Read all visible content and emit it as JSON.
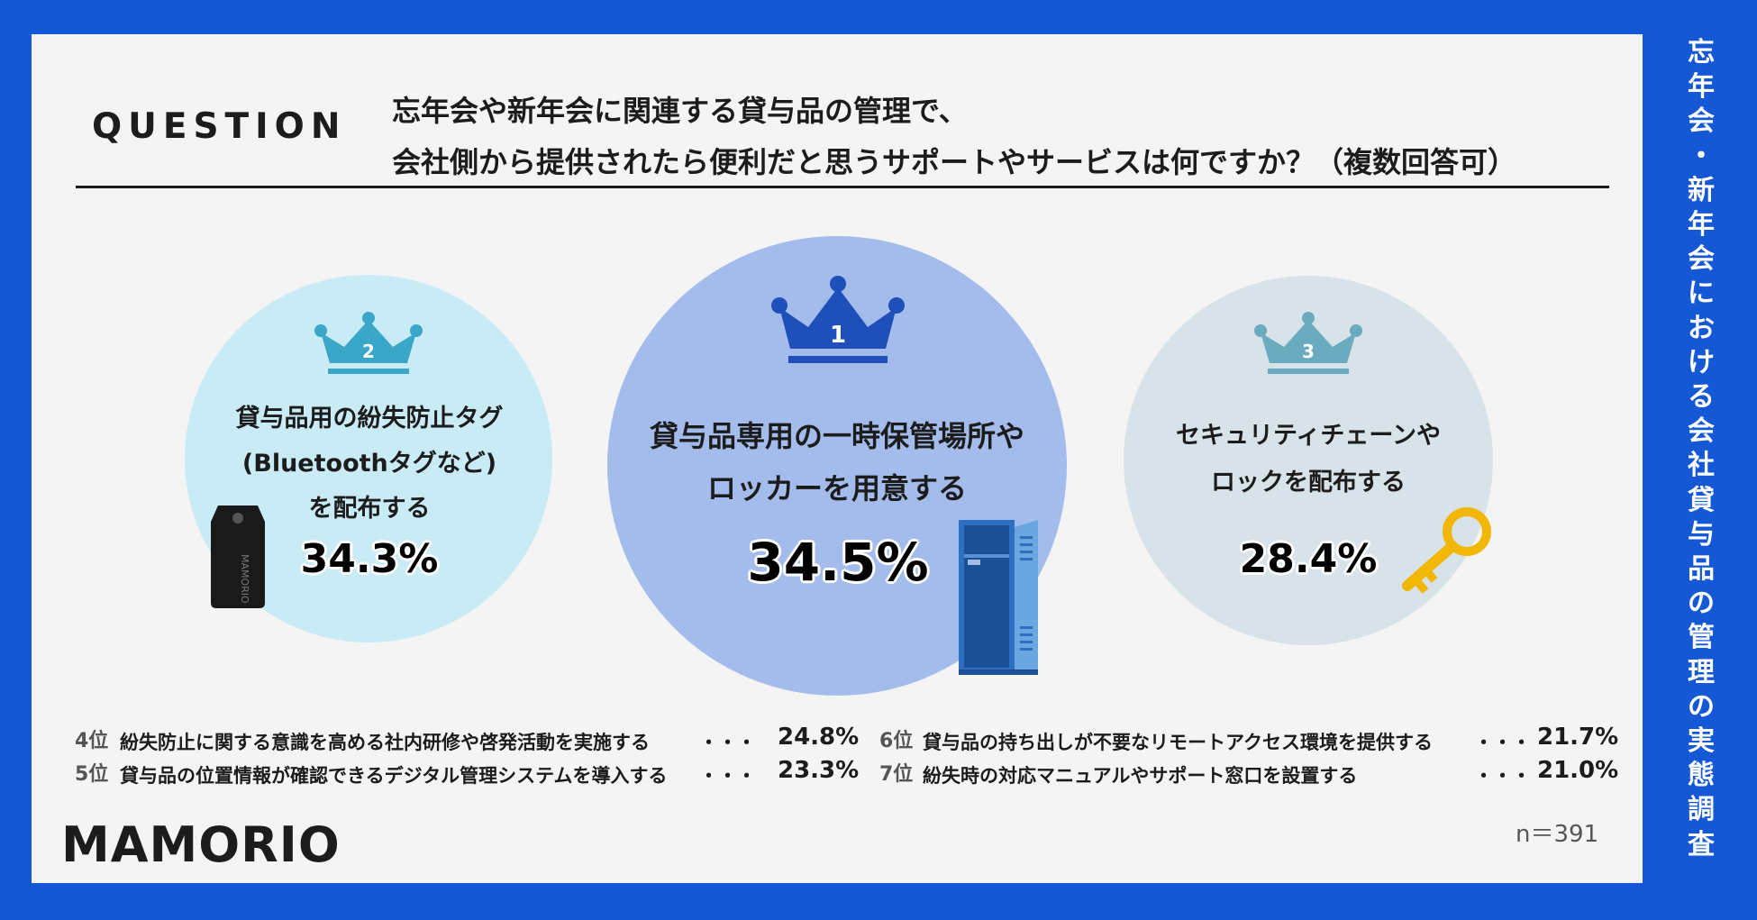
{
  "side_title": "忘年会・新年会における会社貸与品の管理の実態調査",
  "question": {
    "label": "QUESTION",
    "line1": "忘年会や新年会に関連する貸与品の管理で、",
    "line2": "会社側から提供されたら便利だと思うサポートやサービスは何ですか？（複数回答可）"
  },
  "chart_data": {
    "type": "table",
    "items": [
      {
        "rank": "1",
        "label_lines": [
          "貸与品専用の一時保管場所や",
          "ロッカーを用意する"
        ],
        "value": 34.5,
        "display": "34.5%"
      },
      {
        "rank": "2",
        "label_lines": [
          "貸与品用の紛失防止タグ",
          "(Bluetoothタグなど)",
          "を配布する"
        ],
        "value": 34.3,
        "display": "34.3%"
      },
      {
        "rank": "3",
        "label_lines": [
          "セキュリティチェーンや",
          "ロックを配布する"
        ],
        "value": 28.4,
        "display": "28.4%"
      },
      {
        "rank": "4位",
        "label": "紛失防止に関する意識を高める社内研修や啓発活動を実施する",
        "value": 24.8,
        "display": "24.8%"
      },
      {
        "rank": "5位",
        "label": "貸与品の位置情報が確認できるデジタル管理システムを導入する",
        "value": 23.3,
        "display": "23.3%"
      },
      {
        "rank": "6位",
        "label": "貸与品の持ち出しが不要なリモートアクセス環境を提供する",
        "value": 21.7,
        "display": "21.7%"
      },
      {
        "rank": "7位",
        "label": "紛失時の対応マニュアルやサポート窓口を設置する",
        "value": 21.0,
        "display": "21.0%"
      }
    ],
    "dots": "・・・"
  },
  "sample_size": "n＝391",
  "logo": "MAMORIO",
  "tag_text": "MAMORIO",
  "colors": {
    "frame": "#1558d6",
    "circle1": "#a3bcec",
    "circle2": "#c9ebf6",
    "circle3": "#d7e3e8",
    "crown1": "#1f4fb8",
    "crown2": "#3aa6c8",
    "crown3": "#6aabc0"
  }
}
